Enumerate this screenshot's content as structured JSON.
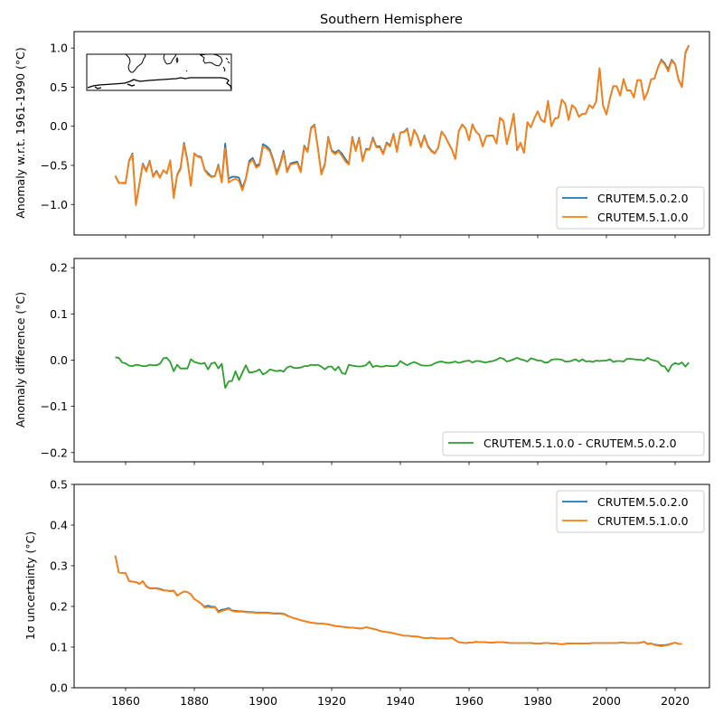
{
  "figure_title": "Southern Hemisphere",
  "chart_data": [
    {
      "type": "line",
      "panel": "anomaly",
      "title": "Southern Hemisphere",
      "xlabel": "",
      "ylabel": "Anomaly w.r.t. 1961-1990 (°C)",
      "xlim": [
        1845,
        2030
      ],
      "ylim": [
        -1.39,
        1.21
      ],
      "xticks": [
        1860,
        1880,
        1900,
        1920,
        1940,
        1960,
        1980,
        2000,
        2020
      ],
      "xtick_labels_visible": false,
      "yticks": [
        -1.0,
        -0.5,
        0.0,
        0.5,
        1.0
      ],
      "ytick_labels": [
        "−1.0",
        "−0.5",
        "0.0",
        "0.5",
        "1.0"
      ],
      "grid": false,
      "legend": {
        "position": "lower-right",
        "entries": [
          "CRUTEM.5.0.2.0",
          "CRUTEM.5.1.0.0"
        ]
      },
      "inset": "map of Southern Hemisphere coastlines (South America, Africa, Australia, Antarctica)",
      "x_start": 1857,
      "series": [
        {
          "name": "CRUTEM.5.0.2.0",
          "color": "#1f77b4",
          "derived_from": "CRUTEM.5.1.0.0 minus difference"
        },
        {
          "name": "CRUTEM.5.1.0.0",
          "color": "#ff7f0e",
          "values": [
            -0.63,
            -0.72,
            -0.73,
            -0.73,
            -0.45,
            -0.36,
            -1.01,
            -0.75,
            -0.49,
            -0.58,
            -0.45,
            -0.65,
            -0.58,
            -0.66,
            -0.56,
            -0.6,
            -0.44,
            -0.92,
            -0.63,
            -0.55,
            -0.23,
            -0.45,
            -0.76,
            -0.35,
            -0.39,
            -0.4,
            -0.56,
            -0.62,
            -0.65,
            -0.64,
            -0.51,
            -0.72,
            -0.28,
            -0.72,
            -0.69,
            -0.67,
            -0.7,
            -0.82,
            -0.68,
            -0.47,
            -0.43,
            -0.53,
            -0.5,
            -0.26,
            -0.28,
            -0.32,
            -0.45,
            -0.62,
            -0.5,
            -0.34,
            -0.59,
            -0.49,
            -0.48,
            -0.47,
            -0.59,
            -0.26,
            -0.33,
            -0.03,
            0.01,
            -0.29,
            -0.62,
            -0.5,
            -0.15,
            -0.32,
            -0.36,
            -0.32,
            -0.38,
            -0.45,
            -0.49,
            -0.15,
            -0.32,
            -0.16,
            -0.45,
            -0.3,
            -0.3,
            -0.16,
            -0.27,
            -0.27,
            -0.36,
            -0.22,
            -0.26,
            -0.11,
            -0.33,
            -0.08,
            -0.08,
            -0.04,
            -0.25,
            -0.05,
            -0.13,
            -0.27,
            -0.13,
            -0.26,
            -0.32,
            -0.35,
            -0.28,
            -0.07,
            -0.13,
            -0.22,
            -0.3,
            -0.42,
            -0.07,
            0.02,
            -0.03,
            -0.18,
            0.02,
            -0.07,
            -0.11,
            -0.26,
            -0.13,
            -0.12,
            -0.12,
            -0.22,
            0.11,
            0.07,
            -0.23,
            -0.05,
            0.16,
            -0.3,
            -0.21,
            -0.34,
            0.05,
            -0.01,
            0.1,
            0.19,
            0.08,
            0.05,
            0.32,
            0.0,
            0.1,
            0.11,
            0.34,
            0.29,
            0.08,
            0.27,
            0.23,
            0.12,
            0.16,
            0.16,
            0.27,
            0.23,
            0.31,
            0.74,
            0.27,
            0.15,
            0.35,
            0.51,
            0.51,
            0.39,
            0.6,
            0.46,
            0.46,
            0.37,
            0.59,
            0.59,
            0.34,
            0.44,
            0.6,
            0.61,
            0.75,
            0.84,
            0.79,
            0.7,
            0.84,
            0.79,
            0.59,
            0.5,
            0.93,
            1.03
          ]
        }
      ]
    },
    {
      "type": "line",
      "panel": "difference",
      "xlabel": "",
      "ylabel": "Anomaly difference (°C)",
      "xlim": [
        1845,
        2030
      ],
      "ylim": [
        -0.22,
        0.22
      ],
      "xticks": [
        1860,
        1880,
        1900,
        1920,
        1940,
        1960,
        1980,
        2000,
        2020
      ],
      "xtick_labels_visible": false,
      "yticks": [
        -0.2,
        -0.1,
        0.0,
        0.1,
        0.2
      ],
      "ytick_labels": [
        "−0.2",
        "−0.1",
        "0.0",
        "0.1",
        "0.2"
      ],
      "grid": false,
      "legend": {
        "position": "lower-right",
        "entries": [
          "CRUTEM.5.1.0.0 - CRUTEM.5.0.2.0"
        ]
      },
      "x_start": 1857,
      "series": [
        {
          "name": "CRUTEM.5.1.0.0 - CRUTEM.5.0.2.0",
          "color": "#2ca02c",
          "values": [
            0.006,
            0.005,
            -0.005,
            -0.007,
            -0.012,
            -0.013,
            -0.01,
            -0.011,
            -0.013,
            -0.013,
            -0.01,
            -0.011,
            -0.011,
            -0.008,
            0.004,
            0.005,
            -0.004,
            -0.024,
            -0.01,
            -0.018,
            -0.018,
            -0.018,
            0.002,
            -0.004,
            -0.006,
            -0.008,
            -0.006,
            -0.02,
            -0.007,
            -0.005,
            -0.018,
            -0.008,
            -0.06,
            -0.046,
            -0.045,
            -0.024,
            -0.043,
            -0.027,
            -0.011,
            -0.027,
            -0.026,
            -0.024,
            -0.02,
            -0.031,
            -0.027,
            -0.02,
            -0.022,
            -0.024,
            -0.022,
            -0.025,
            -0.016,
            -0.013,
            -0.017,
            -0.017,
            -0.016,
            -0.013,
            -0.013,
            -0.01,
            -0.011,
            -0.01,
            -0.014,
            -0.02,
            -0.014,
            -0.014,
            -0.022,
            -0.014,
            -0.028,
            -0.03,
            -0.01,
            -0.012,
            -0.013,
            -0.014,
            -0.013,
            -0.011,
            -0.003,
            -0.015,
            -0.012,
            -0.014,
            -0.014,
            -0.012,
            -0.013,
            -0.013,
            -0.012,
            -0.002,
            -0.007,
            -0.011,
            -0.007,
            -0.004,
            -0.007,
            -0.011,
            -0.012,
            -0.012,
            -0.011,
            -0.007,
            -0.004,
            -0.003,
            -0.005,
            -0.006,
            -0.005,
            -0.003,
            -0.006,
            -0.004,
            -0.002,
            -0.001,
            -0.005,
            -0.002,
            -0.002,
            -0.004,
            -0.005,
            -0.003,
            -0.002,
            0.001,
            0.005,
            0.003,
            -0.003,
            -0.001,
            0.002,
            0.005,
            0.002,
            0.0,
            -0.003,
            0.004,
            0.002,
            -0.001,
            -0.001,
            -0.005,
            -0.005,
            0.001,
            0.002,
            0.002,
            0.001,
            -0.003,
            -0.003,
            -0.001,
            0.002,
            -0.003,
            0.002,
            -0.003,
            -0.002,
            -0.004,
            -0.001,
            -0.002,
            -0.001,
            -0.001,
            0.002,
            -0.004,
            -0.002,
            -0.002,
            -0.003,
            0.003,
            0.003,
            0.002,
            0.001,
            0.001,
            -0.001,
            0.005,
            0.001,
            -0.001,
            -0.003,
            -0.012,
            -0.014,
            -0.025,
            -0.011,
            -0.006,
            -0.009,
            -0.005,
            -0.014,
            -0.005
          ]
        }
      ]
    },
    {
      "type": "line",
      "panel": "uncertainty",
      "xlabel": "",
      "ylabel": "1σ uncertainty (°C)",
      "xlim": [
        1845,
        2030
      ],
      "ylim": [
        0.0,
        0.5
      ],
      "xticks": [
        1860,
        1880,
        1900,
        1920,
        1940,
        1960,
        1980,
        2000,
        2020
      ],
      "xtick_labels": [
        "1860",
        "1880",
        "1900",
        "1920",
        "1940",
        "1960",
        "1980",
        "2000",
        "2020"
      ],
      "yticks": [
        0.0,
        0.1,
        0.2,
        0.3,
        0.4,
        0.5
      ],
      "ytick_labels": [
        "0.0",
        "0.1",
        "0.2",
        "0.3",
        "0.4",
        "0.5"
      ],
      "grid": false,
      "legend": {
        "position": "upper-right",
        "entries": [
          "CRUTEM.5.0.2.0",
          "CRUTEM.5.1.0.0"
        ]
      },
      "x_start": 1857,
      "series": [
        {
          "name": "CRUTEM.5.0.2.0",
          "color": "#1f77b4",
          "values": [
            0.325,
            0.284,
            0.282,
            0.282,
            0.262,
            0.261,
            0.26,
            0.256,
            0.262,
            0.25,
            0.245,
            0.245,
            0.245,
            0.243,
            0.24,
            0.239,
            0.238,
            0.239,
            0.227,
            0.232,
            0.237,
            0.235,
            0.23,
            0.218,
            0.213,
            0.207,
            0.199,
            0.202,
            0.199,
            0.199,
            0.188,
            0.192,
            0.193,
            0.196,
            0.19,
            0.189,
            0.188,
            0.188,
            0.187,
            0.186,
            0.186,
            0.185,
            0.185,
            0.185,
            0.185,
            0.184,
            0.183,
            0.183,
            0.183,
            0.182,
            0.178,
            0.174,
            0.171,
            0.169,
            0.166,
            0.164,
            0.162,
            0.16,
            0.159,
            0.158,
            0.158,
            0.157,
            0.156,
            0.154,
            0.152,
            0.151,
            0.15,
            0.149,
            0.148,
            0.148,
            0.147,
            0.146,
            0.146,
            0.149,
            0.147,
            0.145,
            0.143,
            0.14,
            0.138,
            0.137,
            0.136,
            0.134,
            0.132,
            0.13,
            0.128,
            0.128,
            0.127,
            0.126,
            0.126,
            0.124,
            0.122,
            0.122,
            0.123,
            0.122,
            0.121,
            0.121,
            0.121,
            0.121,
            0.123,
            0.117,
            0.112,
            0.111,
            0.11,
            0.111,
            0.111,
            0.113,
            0.112,
            0.112,
            0.112,
            0.111,
            0.111,
            0.112,
            0.112,
            0.112,
            0.111,
            0.11,
            0.11,
            0.11,
            0.11,
            0.11,
            0.11,
            0.11,
            0.109,
            0.109,
            0.109,
            0.11,
            0.11,
            0.109,
            0.109,
            0.108,
            0.107,
            0.108,
            0.109,
            0.109,
            0.109,
            0.109,
            0.109,
            0.109,
            0.109,
            0.11,
            0.11,
            0.11,
            0.11,
            0.11,
            0.11,
            0.11,
            0.11,
            0.111,
            0.111,
            0.11,
            0.11,
            0.11,
            0.11,
            0.111,
            0.113,
            0.108,
            0.109,
            0.106,
            0.105,
            0.104,
            0.105,
            0.106,
            0.109,
            0.111,
            0.108,
            0.108
          ]
        },
        {
          "name": "CRUTEM.5.1.0.0",
          "color": "#ff7f0e",
          "values": [
            0.324,
            0.284,
            0.282,
            0.282,
            0.262,
            0.261,
            0.26,
            0.255,
            0.262,
            0.249,
            0.244,
            0.244,
            0.244,
            0.242,
            0.239,
            0.239,
            0.237,
            0.239,
            0.226,
            0.232,
            0.237,
            0.235,
            0.23,
            0.218,
            0.213,
            0.207,
            0.197,
            0.199,
            0.197,
            0.198,
            0.185,
            0.189,
            0.191,
            0.194,
            0.189,
            0.187,
            0.187,
            0.187,
            0.186,
            0.185,
            0.185,
            0.184,
            0.184,
            0.184,
            0.184,
            0.183,
            0.182,
            0.182,
            0.182,
            0.181,
            0.177,
            0.174,
            0.171,
            0.169,
            0.166,
            0.164,
            0.162,
            0.16,
            0.159,
            0.158,
            0.158,
            0.157,
            0.156,
            0.154,
            0.152,
            0.151,
            0.15,
            0.149,
            0.148,
            0.148,
            0.147,
            0.146,
            0.146,
            0.149,
            0.147,
            0.145,
            0.143,
            0.14,
            0.138,
            0.137,
            0.136,
            0.134,
            0.132,
            0.13,
            0.128,
            0.128,
            0.127,
            0.126,
            0.126,
            0.124,
            0.122,
            0.122,
            0.123,
            0.122,
            0.121,
            0.121,
            0.121,
            0.121,
            0.123,
            0.117,
            0.112,
            0.111,
            0.11,
            0.111,
            0.111,
            0.113,
            0.112,
            0.112,
            0.112,
            0.111,
            0.111,
            0.112,
            0.112,
            0.112,
            0.111,
            0.11,
            0.11,
            0.11,
            0.11,
            0.11,
            0.11,
            0.11,
            0.109,
            0.109,
            0.109,
            0.11,
            0.11,
            0.109,
            0.109,
            0.108,
            0.107,
            0.108,
            0.109,
            0.109,
            0.109,
            0.109,
            0.109,
            0.109,
            0.109,
            0.11,
            0.11,
            0.11,
            0.11,
            0.11,
            0.11,
            0.11,
            0.11,
            0.111,
            0.111,
            0.11,
            0.11,
            0.11,
            0.11,
            0.111,
            0.113,
            0.107,
            0.109,
            0.105,
            0.104,
            0.102,
            0.104,
            0.105,
            0.108,
            0.111,
            0.108,
            0.108
          ]
        }
      ]
    }
  ]
}
